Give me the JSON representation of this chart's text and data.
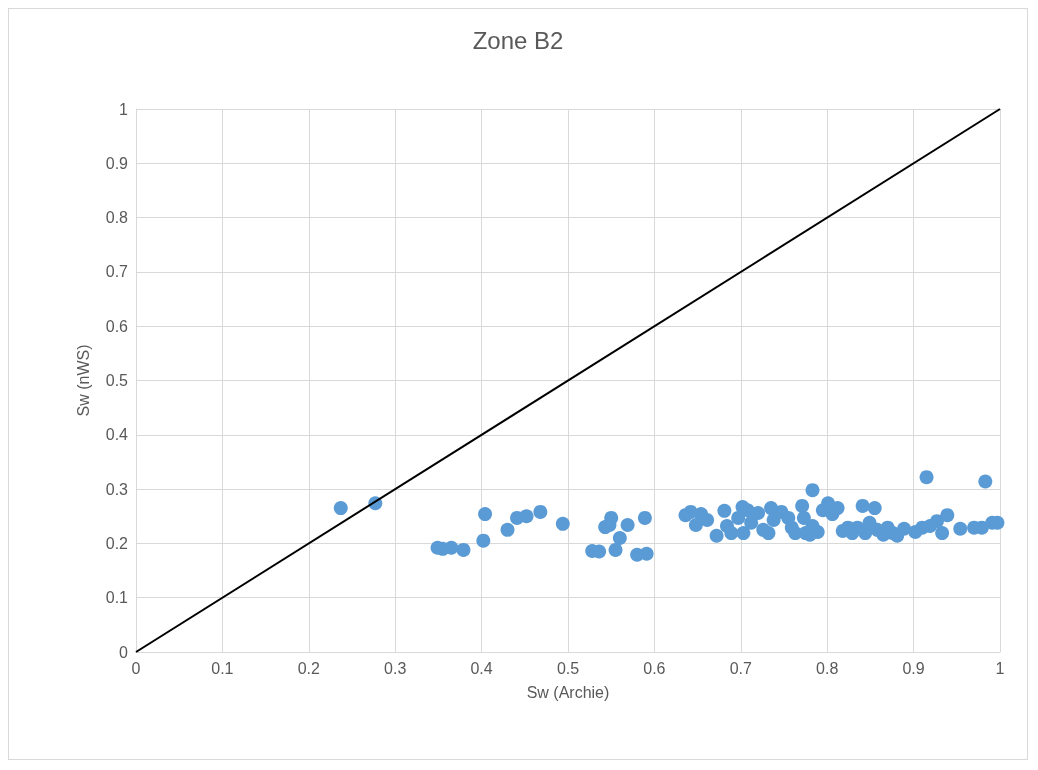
{
  "chart_data": {
    "type": "scatter",
    "title": "Zone B2",
    "xlabel": "Sw (Archie)",
    "ylabel": "Sw (nWS)",
    "xlim": [
      0,
      1
    ],
    "ylim": [
      0,
      1
    ],
    "xticks": [
      0,
      0.1,
      0.2,
      0.3,
      0.4,
      0.5,
      0.6,
      0.7,
      0.8,
      0.9,
      1
    ],
    "yticks": [
      0,
      0.1,
      0.2,
      0.3,
      0.4,
      0.5,
      0.6,
      0.7,
      0.8,
      0.9,
      1
    ],
    "grid": true,
    "marker": "circle",
    "series": [
      {
        "color": "#5b9bd5",
        "x": [
          0.237,
          0.277,
          0.349,
          0.355,
          0.365,
          0.379,
          0.402,
          0.404,
          0.43,
          0.441,
          0.452,
          0.468,
          0.494,
          0.528,
          0.536,
          0.543,
          0.55,
          0.548,
          0.555,
          0.56,
          0.569,
          0.58,
          0.591,
          0.589,
          0.636,
          0.642,
          0.648,
          0.654,
          0.661,
          0.672,
          0.681,
          0.684,
          0.689,
          0.697,
          0.702,
          0.703,
          0.708,
          0.712,
          0.72,
          0.726,
          0.732,
          0.735,
          0.738,
          0.747,
          0.755,
          0.759,
          0.763,
          0.771,
          0.773,
          0.775,
          0.78,
          0.783,
          0.783,
          0.789,
          0.795,
          0.801,
          0.806,
          0.812,
          0.818,
          0.824,
          0.829,
          0.835,
          0.841,
          0.844,
          0.849,
          0.855,
          0.858,
          0.865,
          0.87,
          0.876,
          0.881,
          0.889,
          0.902,
          0.91,
          0.915,
          0.919,
          0.927,
          0.933,
          0.939,
          0.954,
          0.97,
          0.979,
          0.983,
          0.991,
          0.997
        ],
        "values": [
          0.265,
          0.274,
          0.192,
          0.19,
          0.192,
          0.188,
          0.205,
          0.254,
          0.225,
          0.247,
          0.25,
          0.258,
          0.236,
          0.186,
          0.185,
          0.23,
          0.247,
          0.234,
          0.188,
          0.21,
          0.234,
          0.179,
          0.181,
          0.247,
          0.252,
          0.258,
          0.234,
          0.254,
          0.243,
          0.214,
          0.26,
          0.232,
          0.219,
          0.247,
          0.267,
          0.219,
          0.261,
          0.238,
          0.256,
          0.225,
          0.219,
          0.265,
          0.243,
          0.258,
          0.247,
          0.229,
          0.219,
          0.269,
          0.247,
          0.219,
          0.216,
          0.232,
          0.298,
          0.221,
          0.261,
          0.274,
          0.254,
          0.265,
          0.223,
          0.229,
          0.219,
          0.229,
          0.269,
          0.219,
          0.238,
          0.265,
          0.225,
          0.216,
          0.229,
          0.219,
          0.214,
          0.227,
          0.221,
          0.229,
          0.322,
          0.232,
          0.241,
          0.219,
          0.252,
          0.227,
          0.229,
          0.229,
          0.314,
          0.238,
          0.238
        ]
      },
      {
        "type": "line",
        "color": "#000000",
        "x": [
          0,
          1
        ],
        "values": [
          0,
          1
        ],
        "marker": "none",
        "line_style": "solid"
      }
    ]
  }
}
